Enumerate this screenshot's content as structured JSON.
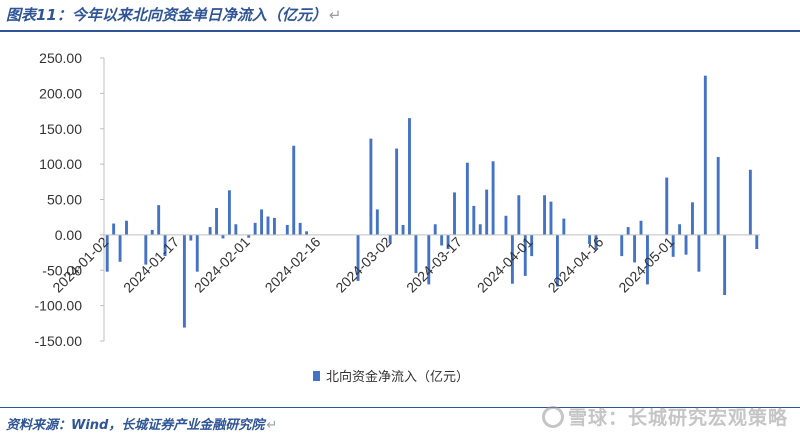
{
  "header": {
    "title": "图表11：今年以来北向资金单日净流入（亿元）",
    "return_mark": "↵"
  },
  "footer": {
    "source": "资料来源：Wind，长城证券产业金融研究院",
    "return_mark": "↵",
    "watermark": "雪球：长城研究宏观策略"
  },
  "chart_data": {
    "type": "bar",
    "legend_label": "北向资金净流入（亿元）",
    "legend_position": "bottom",
    "color": "#4472c4",
    "ylim": [
      -150,
      250
    ],
    "yticks": [
      "250.00",
      "200.00",
      "150.00",
      "100.00",
      "50.00",
      "0.00",
      "-50.00",
      "-100.00",
      "-150.00"
    ],
    "ytick_values": [
      250,
      200,
      150,
      100,
      50,
      0,
      -50,
      -100,
      -150
    ],
    "xticks": [
      {
        "label": "2024-01-02",
        "index": 0
      },
      {
        "label": "2024-01-17",
        "index": 11
      },
      {
        "label": "2024-02-01",
        "index": 22
      },
      {
        "label": "2024-02-16",
        "index": 33
      },
      {
        "label": "2024-03-02",
        "index": 44
      },
      {
        "label": "2024-03-17",
        "index": 55
      },
      {
        "label": "2024-04-01",
        "index": 66
      },
      {
        "label": "2024-04-16",
        "index": 77
      },
      {
        "label": "2024-05-01",
        "index": 88
      }
    ],
    "values": [
      -52,
      16,
      -38,
      20,
      null,
      null,
      -42,
      7,
      42,
      -30,
      null,
      null,
      -131,
      -8,
      -52,
      null,
      11,
      38,
      -5,
      63,
      15,
      null,
      -4,
      17,
      36,
      26,
      24,
      null,
      14,
      126,
      17,
      5,
      null,
      null,
      null,
      null,
      null,
      null,
      null,
      -65,
      null,
      136,
      36,
      null,
      -12,
      122,
      14,
      165,
      -54,
      null,
      -70,
      15,
      -15,
      -20,
      60,
      null,
      102,
      41,
      15,
      64,
      104,
      null,
      27,
      -69,
      56,
      -58,
      -30,
      null,
      56,
      47,
      -73,
      23,
      null,
      null,
      null,
      -13,
      -20,
      null,
      null,
      null,
      -30,
      11,
      -39,
      20,
      -70,
      null,
      null,
      81,
      -31,
      15,
      -28,
      46,
      -52,
      225,
      null,
      110,
      -85,
      null,
      null,
      null,
      92,
      -20
    ]
  }
}
